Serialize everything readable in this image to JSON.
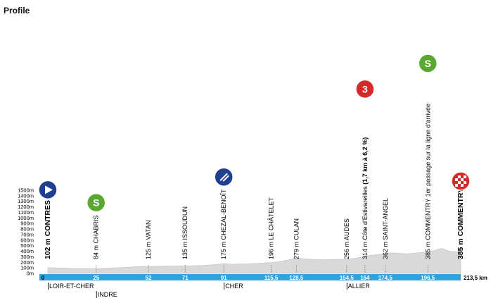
{
  "title": "Profile",
  "axis": {
    "elev_labels": [
      "1500m",
      "1400m",
      "1300m",
      "1200m",
      "1100m",
      "1000m",
      "900m",
      "800m",
      "700m",
      "600m",
      "500m",
      "400m",
      "300m",
      "200m",
      "100m",
      "0m"
    ],
    "elev_values": [
      1500,
      1400,
      1300,
      1200,
      1100,
      1000,
      900,
      800,
      700,
      600,
      500,
      400,
      300,
      200,
      100,
      0
    ],
    "start_label": "0",
    "total_label": "213,5 km",
    "total_km": 213.5
  },
  "checkpoints": [
    {
      "km": 0,
      "km_label": "",
      "label": "102 m CONTRES",
      "bold": true
    },
    {
      "km": 25,
      "km_label": "25",
      "label": "84 m CHABRIS",
      "bold": false
    },
    {
      "km": 52,
      "km_label": "52",
      "label": "125 m VATAN",
      "bold": false
    },
    {
      "km": 71,
      "km_label": "71",
      "label": "135 m ISSOUDUN",
      "bold": false
    },
    {
      "km": 91,
      "km_label": "91",
      "label": "175 m CHEZAL-BENOÎT",
      "bold": false
    },
    {
      "km": 115.5,
      "km_label": "115,5",
      "label": "196 m LE CHÂTELET",
      "bold": false
    },
    {
      "km": 128.5,
      "km_label": "128,5",
      "label": "279 m CULAN",
      "bold": false
    },
    {
      "km": 154.5,
      "km_label": "154,5",
      "label": "256 m AUDES",
      "bold": false
    },
    {
      "km": 164,
      "km_label": "164",
      "label": "314 m Côte d'Estivareilles",
      "bold": false,
      "note": "(1,7 km à 6,2 %)"
    },
    {
      "km": 174.5,
      "km_label": "174,5",
      "label": "362 m SAINT-ANGEL",
      "bold": false
    },
    {
      "km": 196.5,
      "km_label": "196,5",
      "label": "385 m COMMENTRY 1er passage sur la ligne d'arrivée",
      "bold": false
    },
    {
      "km": 213.5,
      "km_label": "",
      "label": "385 m COMMENTRY",
      "bold": true
    }
  ],
  "markers": [
    {
      "type": "start",
      "name": "start-flag-icon",
      "color": "#1f3f8f",
      "at": 0
    },
    {
      "type": "sprint",
      "name": "sprint-icon",
      "color": "#5aa832",
      "symbol": "S",
      "at": 1
    },
    {
      "type": "feed",
      "name": "feed-zone-icon",
      "color": "#1f3f8f",
      "at": 4
    },
    {
      "type": "climb",
      "name": "climb-category-3-icon",
      "color": "#d42a2a",
      "symbol": "3",
      "at": 8
    },
    {
      "type": "sprint",
      "name": "sprint-icon",
      "color": "#5aa832",
      "symbol": "S",
      "at": 10
    },
    {
      "type": "finish",
      "name": "finish-flag-icon",
      "color": "#d42a2a",
      "at": 11
    }
  ],
  "departments": [
    {
      "label": "LOIR-ET-CHER",
      "km": 0,
      "row": 0
    },
    {
      "label": "INDRE",
      "km": 25,
      "row": 1
    },
    {
      "label": "CHER",
      "km": 91,
      "row": 0
    },
    {
      "label": "ALLIER",
      "km": 154.5,
      "row": 0
    }
  ],
  "profile_km": [
    0,
    5,
    10,
    15,
    20,
    25,
    30,
    35,
    40,
    45,
    52,
    60,
    65,
    71,
    76,
    81,
    86,
    91,
    96,
    101,
    106,
    111,
    115.5,
    120,
    124,
    128.5,
    133,
    138,
    143,
    148,
    154.5,
    158,
    162,
    164,
    168,
    172,
    174.5,
    178,
    182,
    186,
    190,
    194,
    196.5,
    200,
    202,
    204,
    206,
    208,
    211,
    213.5
  ],
  "profile_elev": [
    102,
    98,
    92,
    88,
    86,
    84,
    92,
    100,
    108,
    118,
    125,
    130,
    134,
    135,
    140,
    145,
    158,
    175,
    165,
    170,
    178,
    185,
    196,
    215,
    240,
    279,
    262,
    250,
    245,
    250,
    256,
    268,
    290,
    314,
    330,
    345,
    362,
    370,
    360,
    352,
    368,
    378,
    385,
    410,
    440,
    450,
    420,
    395,
    390,
    385
  ],
  "colors": {
    "bar": "#33a2dc",
    "profile_fill": "#d9d9d9",
    "profile_line": "#c8c8c8"
  }
}
